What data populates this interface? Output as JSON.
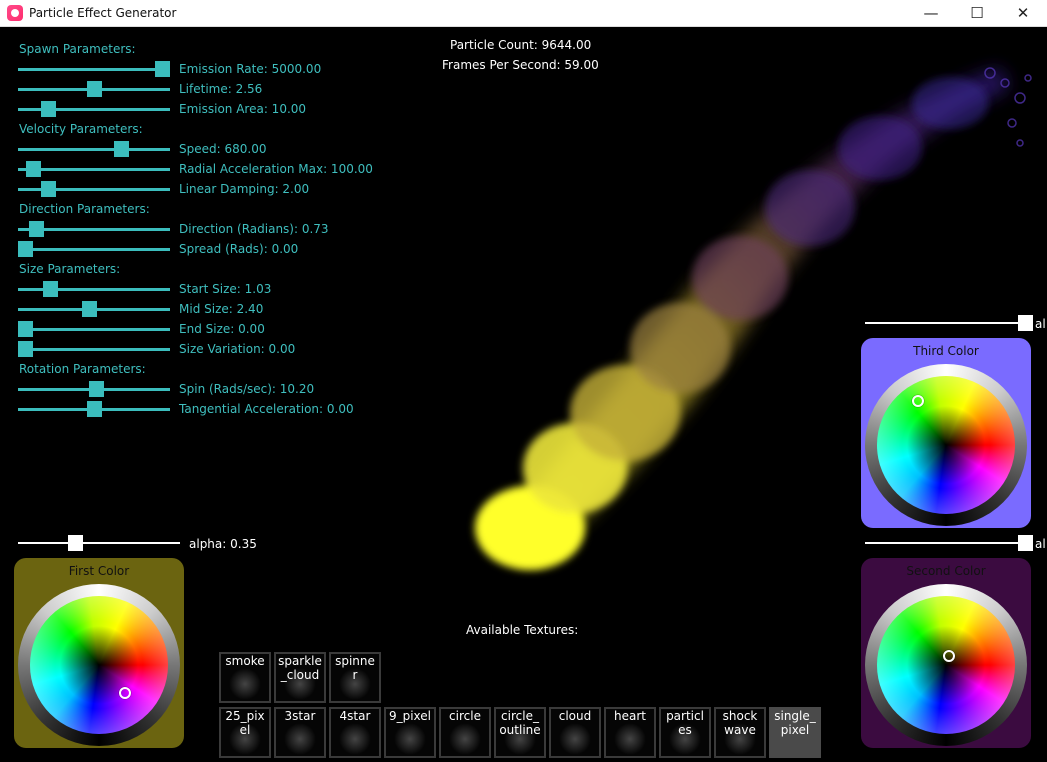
{
  "window": {
    "title": "Particle Effect Generator",
    "min_glyph": "—",
    "max_glyph": "☐",
    "close_glyph": "✕"
  },
  "stats": {
    "particle_count": "Particle Count: 9644.00",
    "fps": "Frames Per Second: 59.00"
  },
  "sections": {
    "spawn": "Spawn Parameters:",
    "velocity": "Velocity Parameters:",
    "direction": "Direction Parameters:",
    "size": "Size Parameters:",
    "rotation": "Rotation Parameters:"
  },
  "sliders": [
    {
      "label": "Emission Rate: 5000.00",
      "level": 1.0
    },
    {
      "label": "Lifetime: 2.56",
      "level": 0.5
    },
    {
      "label": "Emission Area: 10.00",
      "level": 0.2
    },
    {
      "label": "Speed: 680.00",
      "level": 0.68
    },
    {
      "label": "Radial Acceleration Max: 100.00",
      "level": 0.1
    },
    {
      "label": "Linear Damping: 2.00",
      "level": 0.2
    },
    {
      "label": "Direction (Radians): 0.73",
      "level": 0.12
    },
    {
      "label": "Spread (Rads): 0.00",
      "level": 0.0
    },
    {
      "label": "Start Size: 1.03",
      "level": 0.21
    },
    {
      "label": "Mid Size: 2.40",
      "level": 0.47
    },
    {
      "label": "End Size: 0.00",
      "level": 0.0
    },
    {
      "label": "Size Variation: 0.00",
      "level": 0.0
    },
    {
      "label": "Spin (Rads/sec): 10.20",
      "level": 0.51
    },
    {
      "label": "Tangential Acceleration: 0.00",
      "level": 0.5
    }
  ],
  "colors": {
    "first": {
      "title": "First Color",
      "bg": "#6b6410",
      "alpha_label": "alpha: 0.35",
      "alpha": 0.35
    },
    "second": {
      "title": "Second Color",
      "bg": "#3b0b40",
      "alpha_label": "al",
      "alpha": 1.0
    },
    "third": {
      "title": "Third Color",
      "bg": "#7a6bff",
      "alpha_label": "al",
      "alpha": 1.0
    }
  },
  "textures": {
    "heading": "Available Textures:",
    "row1": [
      "smoke",
      "sparkle_cloud",
      "spinner"
    ],
    "row2": [
      "25_pixel",
      "3star",
      "4star",
      "9_pixel",
      "circle",
      "circle_outline",
      "cloud",
      "heart",
      "particles",
      "shockwave",
      "single_pixel"
    ],
    "selected": "single_pixel"
  }
}
